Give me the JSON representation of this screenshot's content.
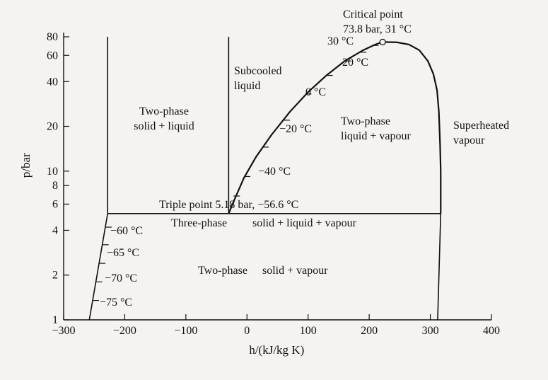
{
  "chart_data": {
    "type": "phase-diagram",
    "xlabel": "h/(kJ/kg K)",
    "ylabel": "p/bar",
    "y_scale": "log",
    "xlim": [
      -300,
      400
    ],
    "ylim": [
      1,
      80
    ],
    "x_ticks": [
      -300,
      -200,
      -100,
      0,
      100,
      200,
      300,
      400
    ],
    "x_tick_labels": [
      "−300",
      "−200",
      "−100",
      "0",
      "100",
      "200",
      "300",
      "400"
    ],
    "y_ticks": [
      1,
      2,
      4,
      6,
      8,
      10,
      20,
      40,
      60,
      80
    ],
    "y_tick_labels": [
      "1",
      "2",
      "4",
      "6",
      "8",
      "10",
      "20",
      "40",
      "60",
      "80"
    ],
    "critical_point": {
      "label_line1": "Critical point",
      "label_line2": "73.8 bar, 31 °C",
      "h": 222,
      "p": 73.8
    },
    "triple_point": {
      "label": "Triple point 5.18 bar, −56.6 °C",
      "p": 5.18
    },
    "regions": [
      {
        "key": "two_phase_sl",
        "lines": [
          "Two-phase",
          "solid + liquid"
        ]
      },
      {
        "key": "subcooled",
        "lines": [
          "Subcooled",
          "liquid"
        ]
      },
      {
        "key": "two_phase_lv",
        "lines": [
          "Two-phase",
          "liquid + vapour"
        ]
      },
      {
        "key": "superheated",
        "lines": [
          "Superheated",
          "vapour"
        ]
      },
      {
        "key": "three_phase",
        "lines": [
          "Three-phase",
          "solid + liquid + vapour"
        ]
      },
      {
        "key": "two_phase_sv",
        "lines": [
          "Two-phase",
          "solid + vapour"
        ]
      }
    ],
    "isotherms_liquid": [
      {
        "label": "30 °C"
      },
      {
        "label": "20 °C"
      },
      {
        "label": "0 °C"
      },
      {
        "label": "−20 °C"
      },
      {
        "label": "−40 °C"
      }
    ],
    "isotherms_solid": [
      {
        "label": "−60 °C"
      },
      {
        "label": "−65 °C"
      },
      {
        "label": "−70 °C"
      },
      {
        "label": "−75 °C"
      }
    ]
  }
}
